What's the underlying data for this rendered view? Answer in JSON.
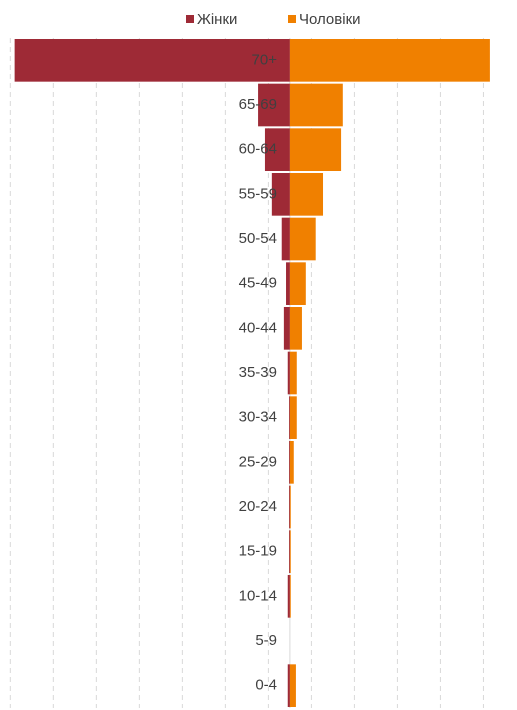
{
  "chart_data": {
    "type": "pyramid",
    "categories": [
      "70+",
      "65-69",
      "60-64",
      "55-59",
      "50-54",
      "45-49",
      "40-44",
      "35-39",
      "30-34",
      "25-29",
      "20-24",
      "15-19",
      "10-14",
      "5-9",
      "0-4"
    ],
    "series": [
      {
        "name": "Жінки",
        "color": "#9e2a36",
        "values": [
          -6.4,
          -0.74,
          -0.58,
          -0.42,
          -0.19,
          -0.09,
          -0.14,
          -0.05,
          -0.02,
          -0.02,
          -0.02,
          -0.02,
          -0.05,
          0,
          -0.05
        ]
      },
      {
        "name": "Чоловіки",
        "color": "#f08000",
        "values": [
          4.65,
          1.23,
          1.19,
          0.77,
          0.6,
          0.37,
          0.28,
          0.16,
          0.16,
          0.09,
          0.02,
          0.02,
          0.02,
          0,
          0.14
        ]
      }
    ],
    "xlim": [
      -6.74,
      5.28
    ],
    "xticks": [
      -6.5,
      -5.5,
      -4.5,
      -3.5,
      -2.5,
      -1.5,
      -0.5,
      0.5,
      1.5,
      2.5,
      3.5,
      4.5
    ],
    "grid": true,
    "legend": "top"
  }
}
